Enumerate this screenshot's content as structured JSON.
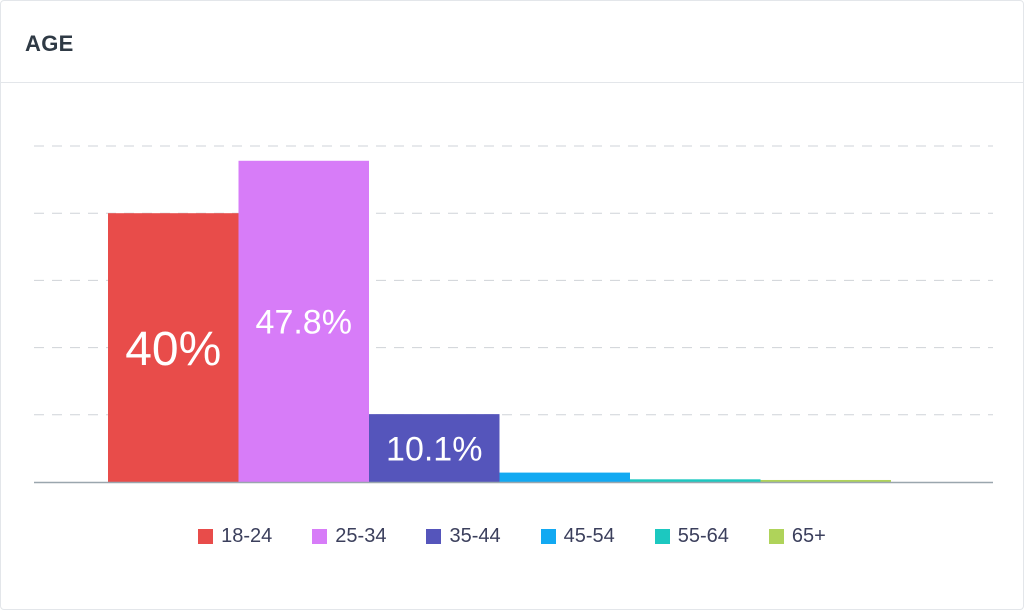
{
  "card": {
    "title": "AGE"
  },
  "chart_data": {
    "type": "bar",
    "title": "AGE",
    "categories": [
      "18-24",
      "25-34",
      "35-44",
      "45-54",
      "55-64",
      "65+"
    ],
    "values": [
      40,
      47.8,
      10.1,
      1.4,
      0.4,
      0.3
    ],
    "data_labels": [
      "40%",
      "47.8%",
      "10.1%",
      "",
      "",
      ""
    ],
    "colors": [
      "#e84c4a",
      "#d77cf8",
      "#5555bb",
      "#12a9f2",
      "#1cc8c0",
      "#afd35a"
    ],
    "ylim": [
      0,
      50
    ],
    "grid": true,
    "legend": "bottom"
  }
}
